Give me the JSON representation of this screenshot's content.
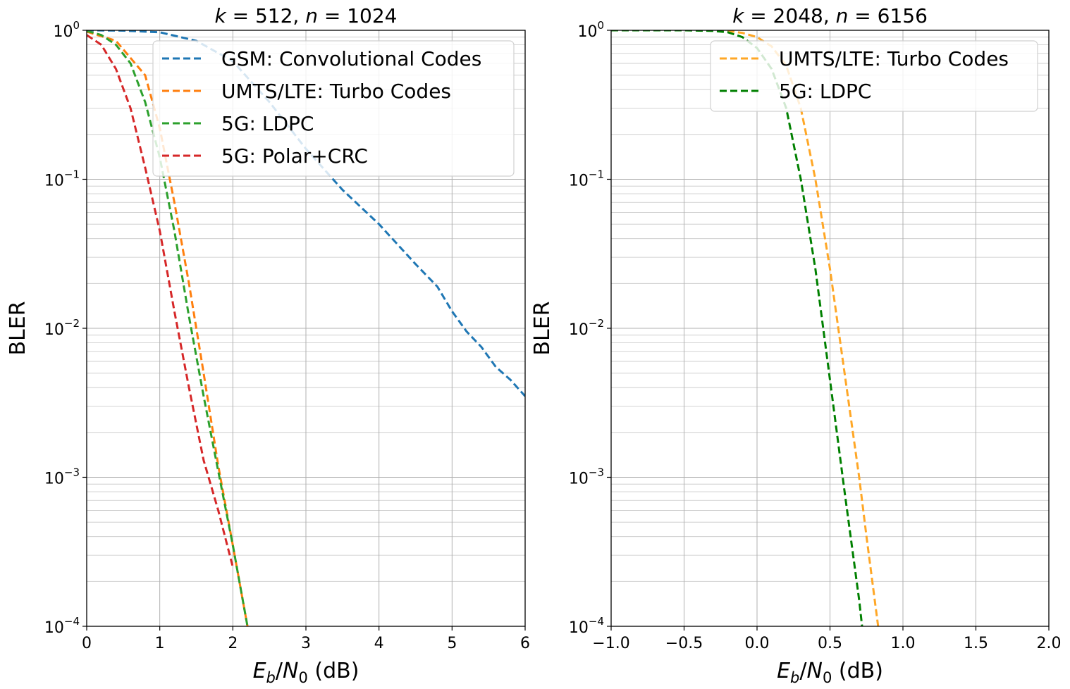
{
  "chart_data": [
    {
      "type": "line",
      "title_parts": [
        "k",
        " = 512, ",
        "n",
        " = 1024"
      ],
      "xlabel_parts": [
        "E",
        "b",
        "/",
        "N",
        "0",
        " (dB)"
      ],
      "ylabel": "BLER",
      "xlim": [
        0,
        6
      ],
      "ylim": [
        0.0001,
        1
      ],
      "yscale": "log",
      "grid": true,
      "xticks": [
        "0",
        "1",
        "2",
        "3",
        "4",
        "5",
        "6"
      ],
      "yticks": [
        {
          "base": "10",
          "exp": "0"
        },
        {
          "base": "10",
          "exp": "−1"
        },
        {
          "base": "10",
          "exp": "−2"
        },
        {
          "base": "10",
          "exp": "−3"
        },
        {
          "base": "10",
          "exp": "−4"
        }
      ],
      "legend_position": "top-right",
      "series": [
        {
          "name": "GSM: Convolutional Codes",
          "color": "#1f77b4",
          "x": [
            0,
            0.5,
            1.0,
            1.5,
            2.0,
            2.5,
            3.0,
            3.5,
            4.0,
            4.5,
            4.8,
            5.0,
            5.2,
            5.4,
            5.6,
            5.8,
            6.0
          ],
          "y": [
            1.0,
            0.995,
            0.97,
            0.85,
            0.62,
            0.33,
            0.16,
            0.085,
            0.05,
            0.027,
            0.019,
            0.013,
            0.0095,
            0.0075,
            0.0055,
            0.0045,
            0.0035
          ]
        },
        {
          "name": "UMTS/LTE: Turbo Codes",
          "color": "#ff7f0e",
          "x": [
            0,
            0.4,
            0.8,
            1.0,
            1.2,
            1.4,
            1.6,
            1.8,
            2.0,
            2.2
          ],
          "y": [
            0.98,
            0.85,
            0.5,
            0.22,
            0.07,
            0.02,
            0.005,
            0.0012,
            0.00035,
            0.0001
          ]
        },
        {
          "name": "5G: LDPC",
          "color": "#2ca02c",
          "x": [
            0,
            0.2,
            0.4,
            0.6,
            0.8,
            1.0,
            1.2,
            1.4,
            1.6,
            1.8,
            2.0,
            2.2
          ],
          "y": [
            0.99,
            0.93,
            0.8,
            0.6,
            0.33,
            0.14,
            0.045,
            0.012,
            0.0035,
            0.0011,
            0.00035,
            0.0001
          ]
        },
        {
          "name": "5G: Polar+CRC",
          "color": "#d62728",
          "x": [
            0,
            0.2,
            0.4,
            0.6,
            0.8,
            1.0,
            1.2,
            1.4,
            1.6,
            1.8,
            2.0
          ],
          "y": [
            0.93,
            0.8,
            0.55,
            0.3,
            0.12,
            0.045,
            0.013,
            0.004,
            0.0013,
            0.0006,
            0.00025
          ]
        }
      ]
    },
    {
      "type": "line",
      "title_parts": [
        "k",
        " = 2048, ",
        "n",
        " = 6156"
      ],
      "xlabel_parts": [
        "E",
        "b",
        "/",
        "N",
        "0",
        " (dB)"
      ],
      "ylabel": "BLER",
      "xlim": [
        -1.0,
        2.0
      ],
      "ylim": [
        0.0001,
        1
      ],
      "yscale": "log",
      "grid": true,
      "xticks": [
        "−1.0",
        "−0.5",
        "0.0",
        "0.5",
        "1.0",
        "1.5",
        "2.0"
      ],
      "yticks": [
        {
          "base": "10",
          "exp": "0"
        },
        {
          "base": "10",
          "exp": "−1"
        },
        {
          "base": "10",
          "exp": "−2"
        },
        {
          "base": "10",
          "exp": "−3"
        },
        {
          "base": "10",
          "exp": "−4"
        }
      ],
      "legend_position": "top-right",
      "series": [
        {
          "name": "UMTS/LTE: Turbo Codes",
          "color": "#ffa726",
          "x": [
            -1.0,
            -0.5,
            -0.3,
            -0.2,
            -0.1,
            0.0,
            0.1,
            0.2,
            0.3,
            0.4,
            0.5,
            0.6,
            0.7,
            0.75,
            0.83
          ],
          "y": [
            1.0,
            1.0,
            1.0,
            0.99,
            0.96,
            0.9,
            0.78,
            0.58,
            0.3,
            0.1,
            0.025,
            0.005,
            0.001,
            0.0004,
            0.0001
          ]
        },
        {
          "name": "5G: LDPC",
          "color": "#008000",
          "x": [
            -1.0,
            -0.5,
            -0.3,
            -0.2,
            -0.1,
            0.0,
            0.1,
            0.2,
            0.3,
            0.4,
            0.5,
            0.6,
            0.7,
            0.72
          ],
          "y": [
            1.0,
            1.0,
            0.99,
            0.97,
            0.9,
            0.76,
            0.55,
            0.3,
            0.1,
            0.025,
            0.0045,
            0.0008,
            0.00015,
            0.0001
          ]
        }
      ]
    }
  ]
}
